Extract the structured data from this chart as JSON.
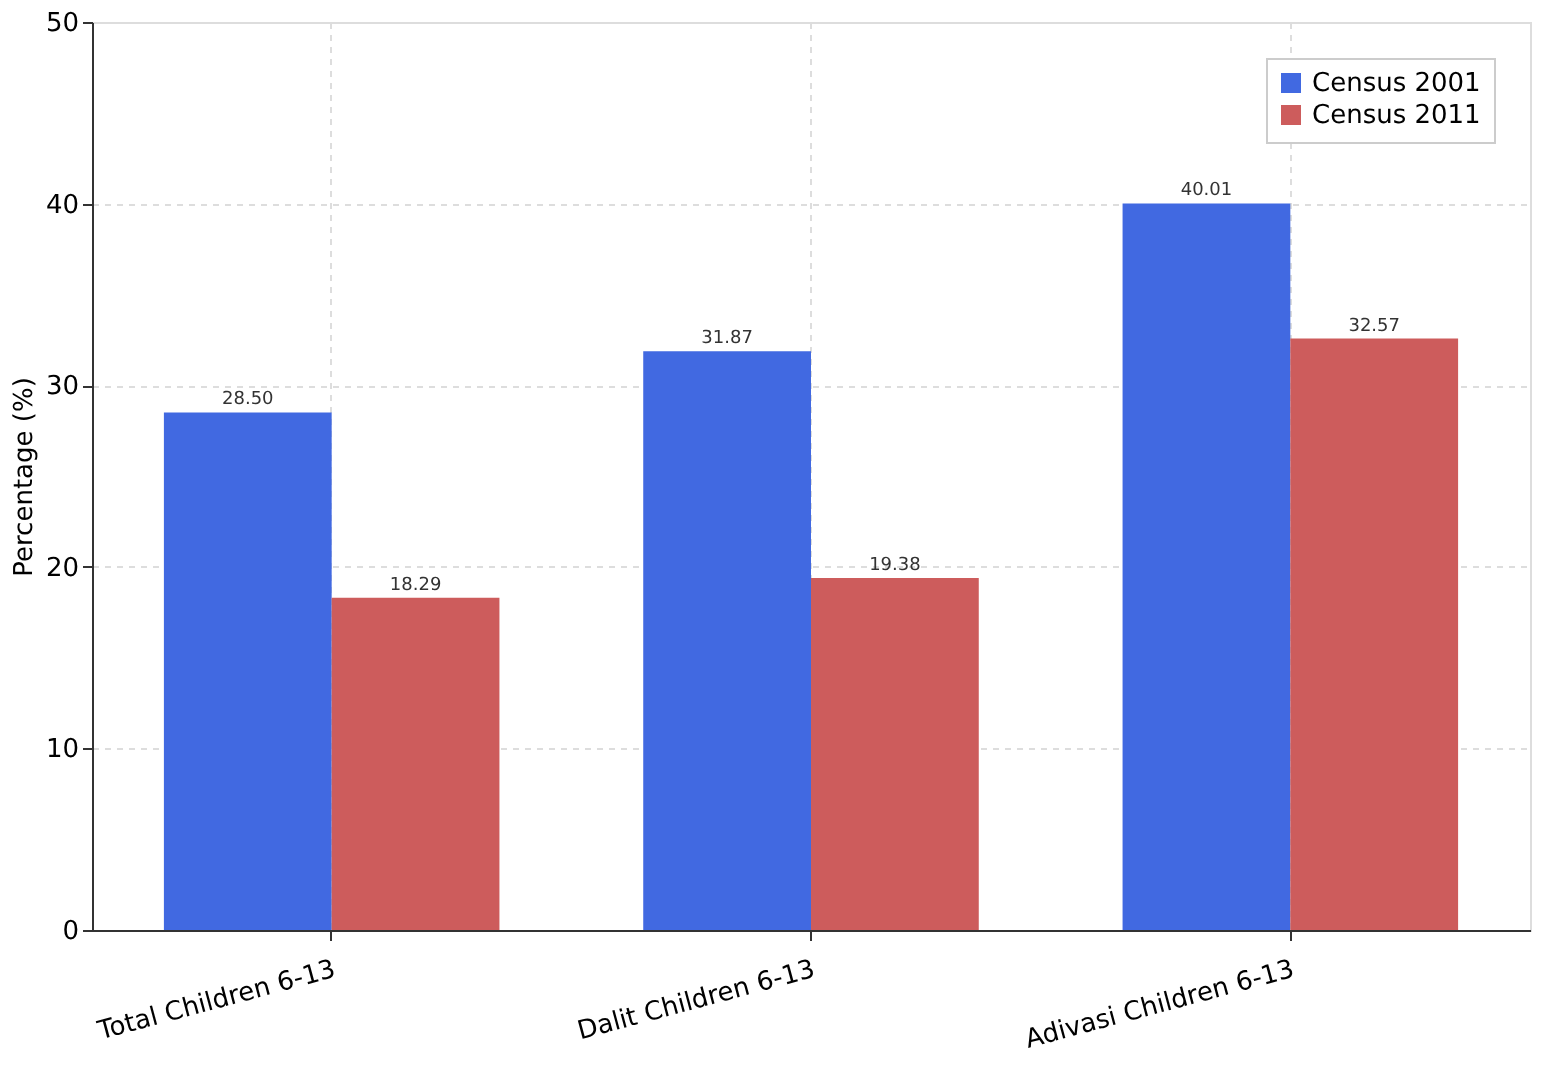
{
  "chart_data": {
    "type": "bar",
    "ylabel": "Percentage (%)",
    "categories": [
      "Total Children 6-13",
      "Dalit Children 6-13",
      "Adivasi Children 6-13"
    ],
    "series": [
      {
        "name": "Census 2001",
        "color": "#4169e1",
        "values": [
          28.5,
          31.87,
          40.01
        ],
        "value_labels": [
          "28.50",
          "31.87",
          "40.01"
        ]
      },
      {
        "name": "Census 2011",
        "color": "#cd5c5c",
        "values": [
          18.29,
          19.38,
          32.57
        ],
        "value_labels": [
          "18.29",
          "19.38",
          "32.57"
        ]
      }
    ],
    "ylim": [
      0,
      50
    ],
    "yticks": [
      0,
      10,
      20,
      30,
      40,
      50
    ],
    "grid": true,
    "legend": "top right"
  }
}
